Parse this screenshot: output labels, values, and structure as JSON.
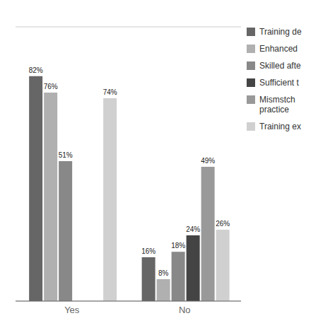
{
  "chart_data": {
    "type": "bar",
    "categories": [
      "Yes",
      "No"
    ],
    "series": [
      {
        "name": "Training de",
        "color": "#666666",
        "values": [
          82,
          16
        ],
        "value_labels": [
          "82%",
          "16%"
        ]
      },
      {
        "name": "Enhanced",
        "color": "#b0b0b0",
        "values": [
          76,
          8
        ],
        "value_labels": [
          "76%",
          "8%"
        ]
      },
      {
        "name": "Skilled afte",
        "color": "#888888",
        "values": [
          51,
          18
        ],
        "value_labels": [
          "51%",
          "18%"
        ]
      },
      {
        "name": "Sufficient t",
        "color": "#444444",
        "values": [
          null,
          24
        ],
        "value_labels": [
          null,
          "24%"
        ]
      },
      {
        "name": "Mismstch\npractice",
        "color": "#999999",
        "values": [
          null,
          49
        ],
        "value_labels": [
          null,
          "49%"
        ]
      },
      {
        "name": "Training ex",
        "color": "#d0d0d0",
        "values": [
          74,
          26
        ],
        "value_labels": [
          "74%",
          "26%"
        ]
      }
    ],
    "ylim": [
      0,
      100
    ],
    "yticks": [
      0,
      20,
      40,
      60,
      80,
      100
    ],
    "grid": true,
    "legend": "right",
    "data_labels": true,
    "tick_labels": "x"
  }
}
